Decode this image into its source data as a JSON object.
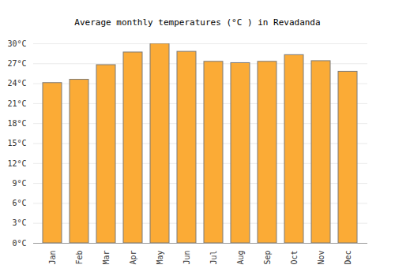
{
  "chart_data": {
    "type": "bar",
    "title": "Average monthly temperatures (°C ) in Revadanda",
    "categories": [
      "Jan",
      "Feb",
      "Mar",
      "Apr",
      "May",
      "Jun",
      "Jul",
      "Aug",
      "Sep",
      "Oct",
      "Nov",
      "Dec"
    ],
    "values": [
      24.1,
      24.6,
      26.8,
      28.7,
      30.0,
      28.8,
      27.3,
      27.1,
      27.3,
      28.3,
      27.4,
      25.8
    ],
    "color": "#fbab36",
    "ylim": [
      0,
      30
    ],
    "yticks": [
      {
        "value": 0,
        "label": "0°C"
      },
      {
        "value": 3,
        "label": "3°C"
      },
      {
        "value": 6,
        "label": "6°C"
      },
      {
        "value": 9,
        "label": "9°C"
      },
      {
        "value": 12,
        "label": "12°C"
      },
      {
        "value": 15,
        "label": "15°C"
      },
      {
        "value": 18,
        "label": "18°C"
      },
      {
        "value": 21,
        "label": "21°C"
      },
      {
        "value": 24,
        "label": "24°C"
      },
      {
        "value": 27,
        "label": "27°C"
      },
      {
        "value": 30,
        "label": "30°C"
      }
    ],
    "grid": true
  }
}
